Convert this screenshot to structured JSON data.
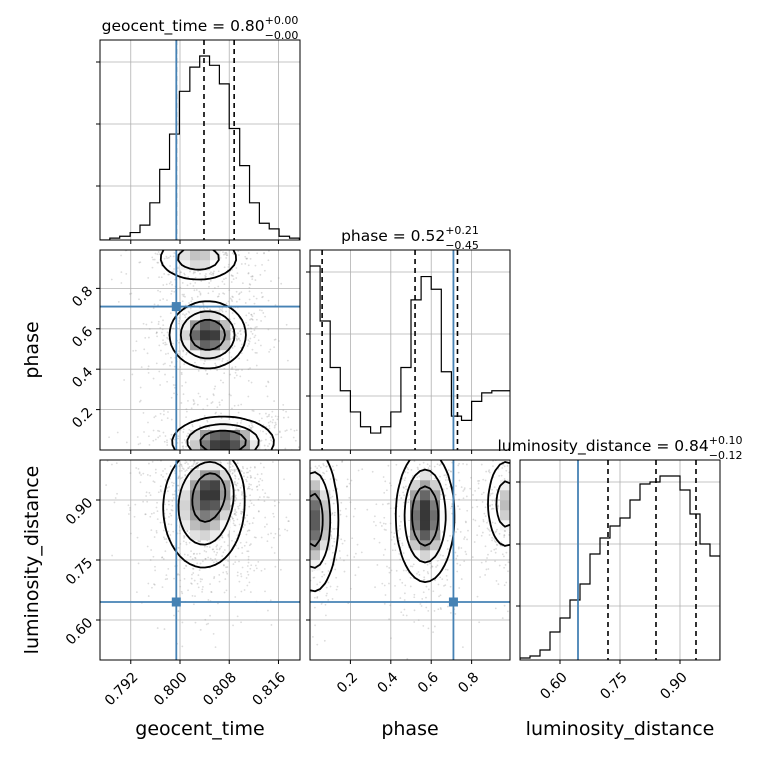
{
  "chart_data": {
    "type": "corner",
    "parameters": [
      "geocent_time",
      "phase",
      "luminosity_distance"
    ],
    "truth": {
      "geocent_time": 0.7994,
      "phase": 0.71,
      "luminosity_distance": 0.645
    },
    "titles": {
      "geocent_time": {
        "label": "geocent_time",
        "value": "0.80",
        "upper": "+0.00",
        "lower": "−0.00"
      },
      "phase": {
        "label": "phase",
        "value": "0.52",
        "upper": "+0.21",
        "lower": "−0.45"
      },
      "luminosity_distance": {
        "label": "luminosity_distance",
        "value": "0.84",
        "upper": "+0.10",
        "lower": "−0.12"
      }
    },
    "axes": {
      "geocent_time": {
        "range": [
          0.787,
          0.8195
        ],
        "ticks": [
          "0.792",
          "0.800",
          "0.808",
          "0.816"
        ],
        "tick_values": [
          0.792,
          0.8,
          0.808,
          0.816
        ]
      },
      "phase": {
        "range": [
          0.0,
          0.99
        ],
        "ticks": [
          "0.2",
          "0.4",
          "0.6",
          "0.8"
        ],
        "tick_values": [
          0.2,
          0.4,
          0.6,
          0.8
        ]
      },
      "luminosity_distance": {
        "range": [
          0.5,
          1.0
        ],
        "ticks": [
          "0.60",
          "0.75",
          "0.90"
        ],
        "tick_values": [
          0.6,
          0.75,
          0.9
        ]
      }
    },
    "marginals": {
      "geocent_time": {
        "edges": [
          0.787,
          0.7886,
          0.7902,
          0.7919,
          0.7935,
          0.7951,
          0.7967,
          0.7983,
          0.7999,
          0.8016,
          0.8032,
          0.8048,
          0.8064,
          0.808,
          0.8097,
          0.8113,
          0.8129,
          0.8145,
          0.8161,
          0.8178,
          0.8194
        ],
        "counts": [
          0.0,
          0.01,
          0.02,
          0.04,
          0.08,
          0.2,
          0.38,
          0.57,
          0.8,
          0.93,
          0.99,
          0.94,
          0.84,
          0.6,
          0.4,
          0.2,
          0.09,
          0.06,
          0.02,
          0.01
        ],
        "quantiles": [
          0.7994,
          0.8039,
          0.8088
        ]
      },
      "phase": {
        "edges": [
          0.0,
          0.05,
          0.1,
          0.15,
          0.2,
          0.25,
          0.3,
          0.35,
          0.4,
          0.45,
          0.5,
          0.55,
          0.6,
          0.65,
          0.7,
          0.75,
          0.8,
          0.85,
          0.9,
          0.95,
          1.0
        ],
        "counts": [
          0.87,
          0.61,
          0.39,
          0.28,
          0.18,
          0.11,
          0.08,
          0.11,
          0.18,
          0.39,
          0.71,
          0.82,
          0.76,
          0.37,
          0.16,
          0.14,
          0.23,
          0.27,
          0.28,
          0.28
        ],
        "quantiles": [
          0.06,
          0.52,
          0.73
        ]
      },
      "luminosity_distance": {
        "edges": [
          0.5,
          0.525,
          0.55,
          0.575,
          0.6,
          0.625,
          0.65,
          0.675,
          0.7,
          0.725,
          0.75,
          0.775,
          0.8,
          0.825,
          0.85,
          0.875,
          0.9,
          0.925,
          0.95,
          0.975,
          1.0
        ],
        "counts": [
          0.01,
          0.02,
          0.05,
          0.14,
          0.21,
          0.3,
          0.38,
          0.53,
          0.61,
          0.67,
          0.71,
          0.8,
          0.88,
          0.89,
          0.92,
          0.92,
          0.85,
          0.73,
          0.58,
          0.52
        ],
        "quantiles": [
          0.72,
          0.84,
          0.94
        ]
      }
    },
    "joint": [
      {
        "x": "geocent_time",
        "y": "phase",
        "blobs": [
          {
            "cx": 0.8045,
            "cy": 0.57,
            "sx": 0.003,
            "sy": 0.08,
            "w": 1.0
          },
          {
            "cx": 0.807,
            "cy": 0.04,
            "sx": 0.004,
            "sy": 0.06,
            "w": 1.0
          },
          {
            "cx": 0.803,
            "cy": 0.95,
            "sx": 0.0035,
            "sy": 0.06,
            "w": 0.55
          }
        ]
      },
      {
        "x": "geocent_time",
        "y": "luminosity_distance",
        "blobs": [
          {
            "cx": 0.8038,
            "cy": 0.88,
            "sx": 0.0035,
            "sy": 0.08,
            "w": 1.0
          },
          {
            "cx": 0.8055,
            "cy": 0.93,
            "sx": 0.002,
            "sy": 0.04,
            "w": 0.7
          }
        ]
      },
      {
        "x": "phase",
        "y": "luminosity_distance",
        "blobs": [
          {
            "cx": 0.57,
            "cy": 0.86,
            "sx": 0.07,
            "sy": 0.08,
            "w": 1.0
          },
          {
            "cx": 0.02,
            "cy": 0.85,
            "sx": 0.06,
            "sy": 0.09,
            "w": 0.85
          },
          {
            "cx": 0.97,
            "cy": 0.89,
            "sx": 0.05,
            "sy": 0.06,
            "w": 0.55
          }
        ]
      }
    ],
    "colors": {
      "truth": "#4682b4",
      "hist": "#000000",
      "grid": "#b0b0b0"
    },
    "grid": true,
    "contour_levels": [
      0.12,
      0.35,
      0.65
    ]
  }
}
